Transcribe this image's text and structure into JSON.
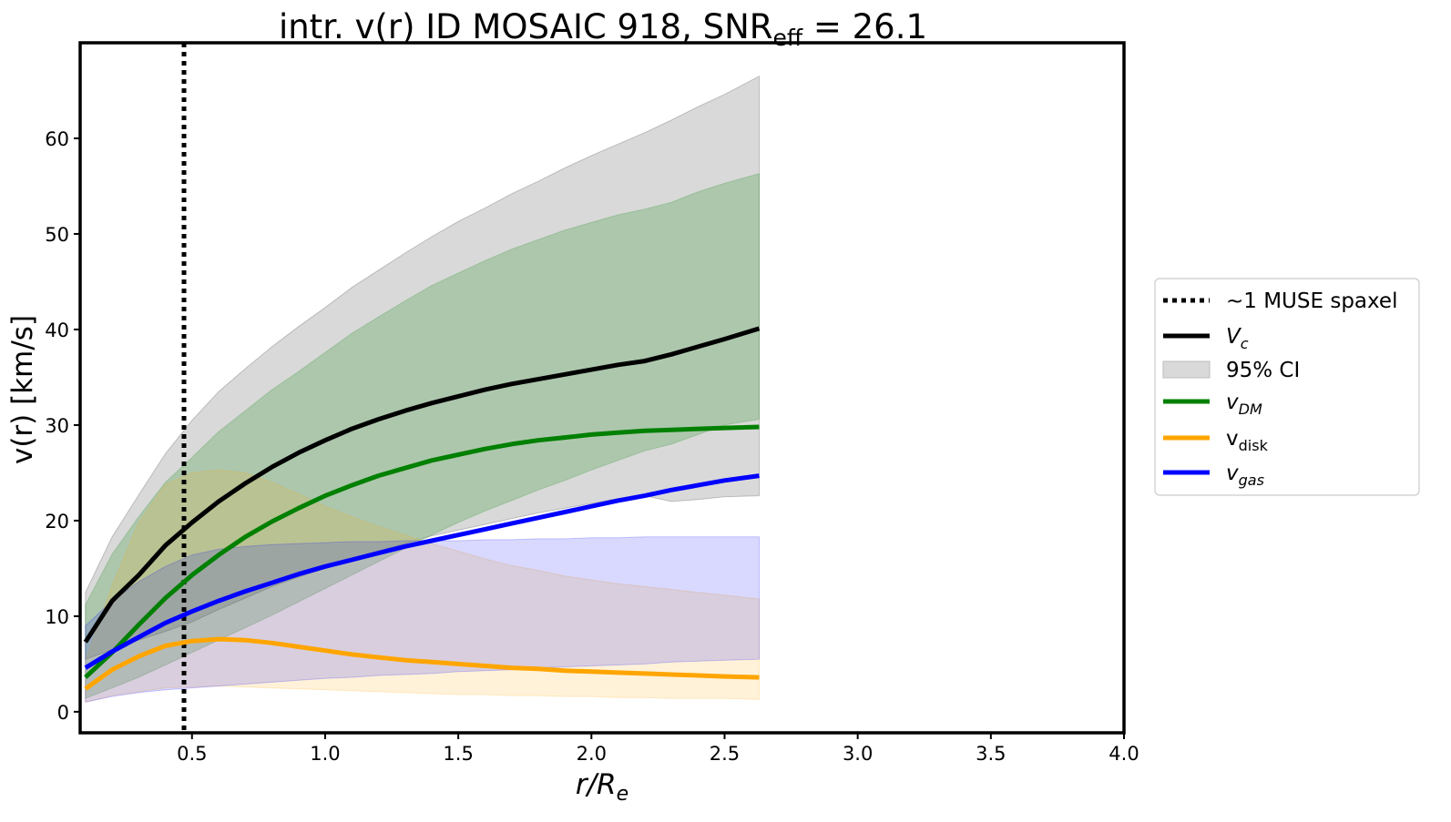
{
  "chart_data": {
    "type": "line",
    "title": {
      "prefix": "intr. v(r) ID MOSAIC 918, SNR",
      "subscript": "eff",
      "suffix": " = 26.1"
    },
    "xlabel": {
      "main": "r/R",
      "subscript": "e"
    },
    "ylabel": "v(r) [km/s]",
    "xlim": [
      0.08,
      4.0
    ],
    "ylim": [
      -2.2,
      70
    ],
    "xticks": [
      0.5,
      1.0,
      1.5,
      2.0,
      2.5,
      3.0,
      3.5,
      4.0
    ],
    "xtick_labels": [
      "0.5",
      "1.0",
      "1.5",
      "2.0",
      "2.5",
      "3.0",
      "3.5",
      "4.0"
    ],
    "yticks": [
      0,
      10,
      20,
      30,
      40,
      50,
      60
    ],
    "ytick_labels": [
      "0",
      "10",
      "20",
      "30",
      "40",
      "50",
      "60"
    ],
    "vline": {
      "x": 0.47,
      "label": "~1 MUSE spaxel",
      "color": "#000000"
    },
    "x": [
      0.1,
      0.2,
      0.3,
      0.4,
      0.5,
      0.6,
      0.7,
      0.8,
      0.9,
      1.0,
      1.1,
      1.2,
      1.3,
      1.4,
      1.5,
      1.6,
      1.7,
      1.8,
      1.9,
      2.0,
      2.1,
      2.2,
      2.3,
      2.4,
      2.5,
      2.63
    ],
    "series": [
      {
        "name": "V_c",
        "key": "vc",
        "color": "#000000",
        "band_opacity": 0.15,
        "values": [
          7.3,
          11.6,
          14.3,
          17.4,
          19.8,
          22.0,
          23.9,
          25.6,
          27.1,
          28.4,
          29.6,
          30.6,
          31.5,
          32.3,
          33.0,
          33.7,
          34.3,
          34.8,
          35.3,
          35.8,
          36.3,
          36.7,
          37.4,
          38.2,
          39.0,
          40.1
        ],
        "ci_lower": [
          5.5,
          6.5,
          7.5,
          8.4,
          9.4,
          10.7,
          11.9,
          13.1,
          14.1,
          15.0,
          15.9,
          16.8,
          17.6,
          18.4,
          19.0,
          19.6,
          20.2,
          20.8,
          21.3,
          21.8,
          22.3,
          22.6,
          22.0,
          22.2,
          22.5,
          22.6
        ],
        "ci_upper": [
          12.5,
          18.3,
          22.7,
          27.0,
          30.5,
          33.5,
          35.9,
          38.2,
          40.3,
          42.3,
          44.4,
          46.2,
          48.0,
          49.7,
          51.3,
          52.7,
          54.2,
          55.5,
          56.9,
          58.2,
          59.4,
          60.6,
          61.9,
          63.3,
          64.6,
          66.5
        ]
      },
      {
        "name": "v_DM",
        "key": "vdm",
        "color": "#008000",
        "band_opacity": 0.2,
        "values": [
          3.6,
          6.2,
          9.1,
          11.9,
          14.3,
          16.4,
          18.3,
          19.9,
          21.3,
          22.6,
          23.7,
          24.7,
          25.5,
          26.3,
          26.9,
          27.5,
          28.0,
          28.4,
          28.7,
          29.0,
          29.2,
          29.4,
          29.5,
          29.6,
          29.7,
          29.8
        ],
        "ci_lower": [
          1.4,
          2.5,
          3.6,
          4.9,
          6.2,
          7.5,
          8.8,
          10.1,
          11.5,
          12.9,
          14.3,
          15.7,
          17.1,
          18.5,
          19.8,
          21.0,
          22.1,
          23.2,
          24.2,
          25.3,
          26.3,
          27.3,
          28.0,
          29.0,
          30.0,
          30.6
        ],
        "ci_upper": [
          11.2,
          16.5,
          20.4,
          24.0,
          26.6,
          29.3,
          31.5,
          33.7,
          35.6,
          37.6,
          39.6,
          41.3,
          43.0,
          44.6,
          45.9,
          47.2,
          48.4,
          49.4,
          50.4,
          51.2,
          52.0,
          52.6,
          53.3,
          54.4,
          55.3,
          56.3
        ]
      },
      {
        "name": "v_disk",
        "key": "vdisk",
        "color": "#FFA500",
        "band_opacity": 0.15,
        "values": [
          2.4,
          4.4,
          5.8,
          6.9,
          7.4,
          7.6,
          7.5,
          7.2,
          6.8,
          6.4,
          6.0,
          5.7,
          5.4,
          5.2,
          5.0,
          4.8,
          4.6,
          4.5,
          4.3,
          4.2,
          4.1,
          4.0,
          3.9,
          3.8,
          3.7,
          3.6
        ],
        "ci_lower": [
          1.0,
          1.7,
          2.1,
          2.5,
          2.6,
          2.7,
          2.6,
          2.5,
          2.4,
          2.3,
          2.2,
          2.1,
          2.0,
          1.9,
          1.8,
          1.8,
          1.7,
          1.7,
          1.6,
          1.6,
          1.5,
          1.5,
          1.4,
          1.4,
          1.4,
          1.3
        ],
        "ci_upper": [
          5.3,
          13.2,
          19.8,
          23.8,
          25.0,
          25.3,
          25.0,
          24.0,
          22.8,
          21.5,
          20.4,
          19.4,
          18.5,
          17.6,
          16.8,
          16.0,
          15.3,
          14.8,
          14.2,
          13.8,
          13.4,
          13.1,
          12.8,
          12.5,
          12.2,
          11.8
        ]
      },
      {
        "name": "v_gas",
        "key": "vgas",
        "color": "#0000FF",
        "band_opacity": 0.15,
        "values": [
          4.6,
          6.3,
          7.8,
          9.3,
          10.5,
          11.6,
          12.6,
          13.5,
          14.4,
          15.2,
          15.9,
          16.6,
          17.3,
          17.9,
          18.5,
          19.1,
          19.7,
          20.3,
          20.9,
          21.5,
          22.1,
          22.6,
          23.2,
          23.7,
          24.2,
          24.7
        ],
        "ci_lower": [
          1.0,
          1.6,
          2.0,
          2.3,
          2.5,
          2.7,
          2.9,
          3.1,
          3.3,
          3.5,
          3.6,
          3.8,
          3.9,
          4.0,
          4.2,
          4.3,
          4.4,
          4.6,
          4.7,
          4.8,
          4.9,
          5.0,
          5.2,
          5.3,
          5.4,
          5.5
        ],
        "ci_upper": [
          9.0,
          11.6,
          13.6,
          15.2,
          16.4,
          17.0,
          17.3,
          17.5,
          17.6,
          17.7,
          17.8,
          17.8,
          17.9,
          17.9,
          17.9,
          18.0,
          18.0,
          18.1,
          18.1,
          18.2,
          18.2,
          18.3,
          18.3,
          18.3,
          18.3,
          18.3
        ]
      }
    ],
    "legend": {
      "position": "center-right",
      "entries": [
        {
          "key": "vline",
          "main": "~1 MUSE spaxel",
          "sub": "",
          "italic": false,
          "style": "dotted",
          "color": "#000000"
        },
        {
          "key": "vc",
          "main": "V",
          "sub": "c",
          "italic": true,
          "style": "line",
          "color": "#000000"
        },
        {
          "key": "ci",
          "main": "95% CI",
          "sub": "",
          "italic": false,
          "style": "patch",
          "color": "#d9d9d9"
        },
        {
          "key": "vdm",
          "main": "v",
          "sub": "DM",
          "italic": true,
          "style": "line",
          "color": "#008000"
        },
        {
          "key": "vdisk",
          "main": "v",
          "sub": "disk",
          "italic": false,
          "style": "line",
          "color": "#FFA500"
        },
        {
          "key": "vgas",
          "main": "v",
          "sub": "gas",
          "italic": true,
          "style": "line",
          "color": "#0000FF"
        }
      ]
    }
  }
}
